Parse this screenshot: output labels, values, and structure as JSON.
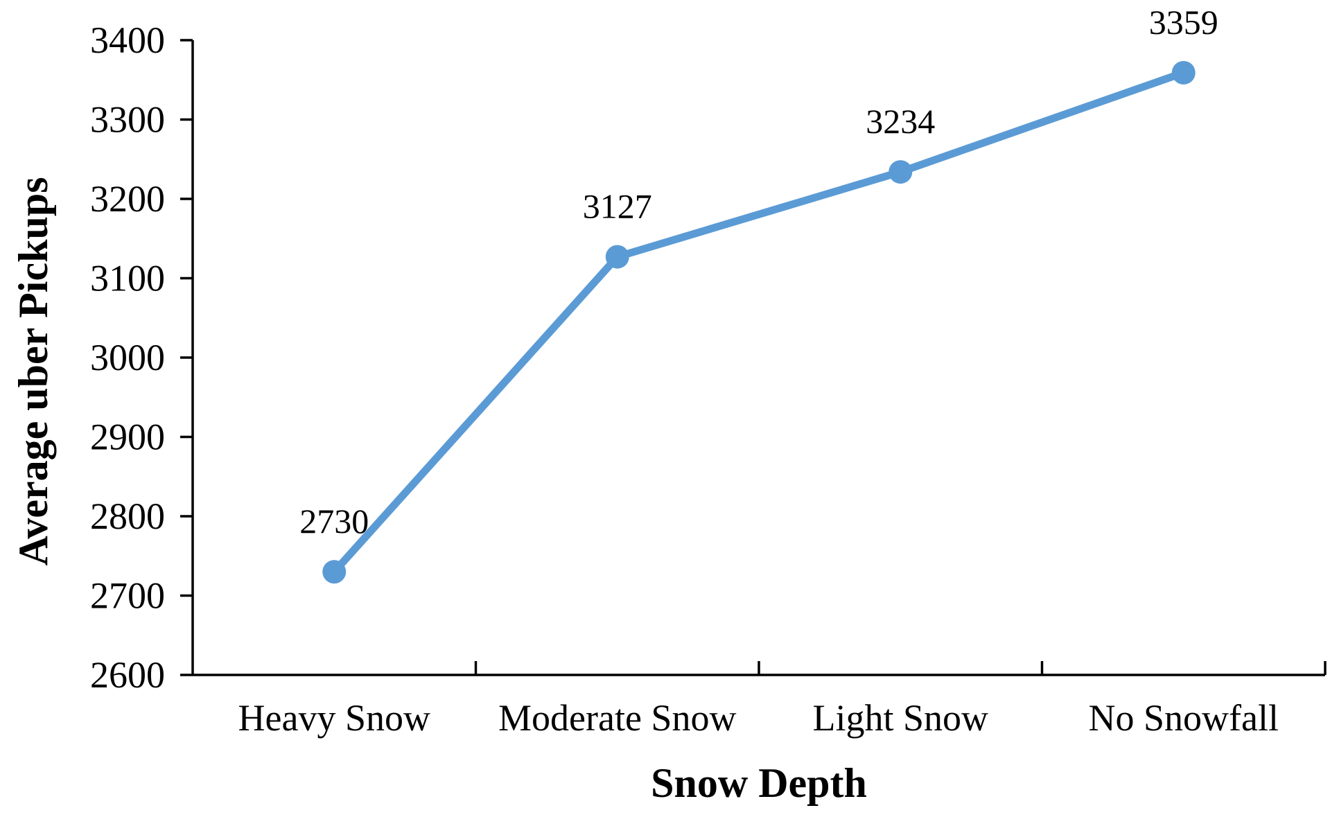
{
  "chart_data": {
    "type": "line",
    "title": "",
    "xlabel": "Snow Depth",
    "ylabel": "Average uber Pickups",
    "categories": [
      "Heavy Snow",
      "Moderate Snow",
      "Light Snow",
      "No Snowfall"
    ],
    "series": [
      {
        "values": [
          2730,
          3127,
          3234,
          3359
        ],
        "color": "#5b9bd5"
      }
    ],
    "data_labels": [
      "2730",
      "3127",
      "3234",
      "3359"
    ],
    "ylim": [
      2600,
      3400
    ],
    "yticks": [
      "2600",
      "2700",
      "2800",
      "2900",
      "3000",
      "3100",
      "3200",
      "3300",
      "3400"
    ],
    "grid": false,
    "legend": "none"
  }
}
